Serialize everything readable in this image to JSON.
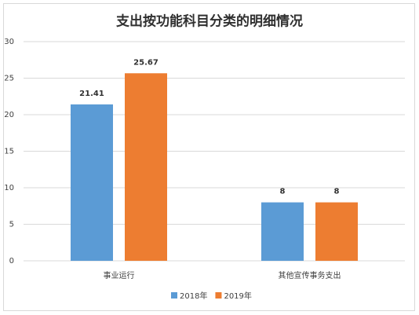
{
  "chart_data": {
    "type": "bar",
    "title": "支出按功能科目分类的明细情况",
    "categories": [
      "事业运行",
      "其他宣传事务支出"
    ],
    "series": [
      {
        "name": "2018年",
        "color": "#5b9bd5",
        "values": [
          21.41,
          8
        ]
      },
      {
        "name": "2019年",
        "color": "#ed7d31",
        "values": [
          25.67,
          8
        ]
      }
    ],
    "ylim": [
      0,
      30
    ],
    "yticks": [
      0,
      5,
      10,
      15,
      20,
      25,
      30
    ],
    "grid": true
  }
}
